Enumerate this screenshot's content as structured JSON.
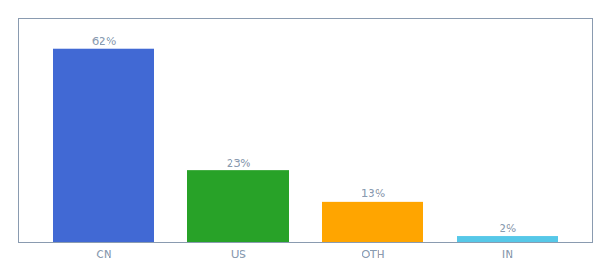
{
  "chart_data": {
    "type": "bar",
    "categories": [
      "CN",
      "US",
      "OTH",
      "IN"
    ],
    "values": [
      62,
      23,
      13,
      2
    ],
    "value_labels": [
      "62%",
      "23%",
      "13%",
      "2%"
    ],
    "colors": [
      "#4169D4",
      "#28A228",
      "#FFA500",
      "#56C8E8"
    ],
    "ylim": [
      0,
      72
    ],
    "yticks": [],
    "data_labels": true,
    "tick_labels": "x",
    "grid": false
  }
}
